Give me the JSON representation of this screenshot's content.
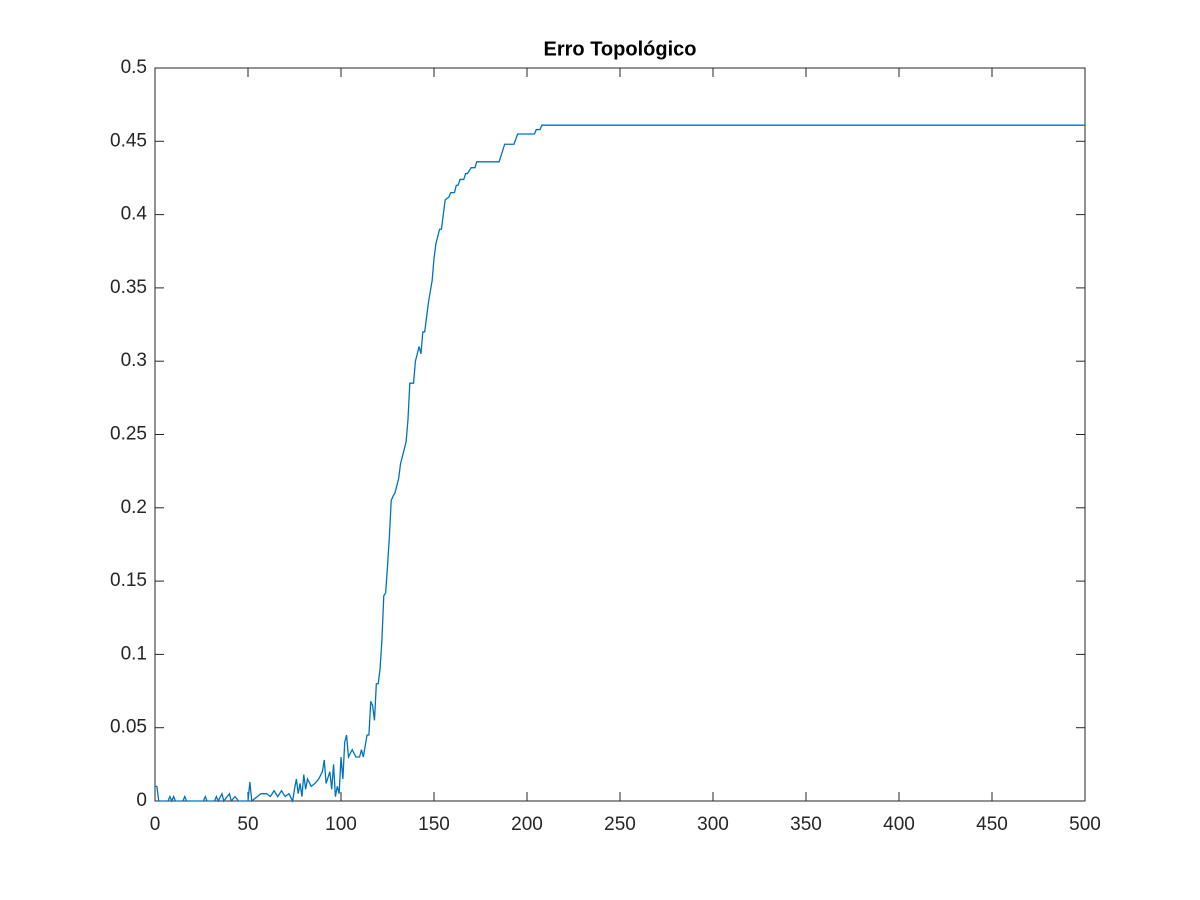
{
  "chart_data": {
    "type": "line",
    "title": "Erro Topológico",
    "x": [
      0,
      1,
      2,
      7,
      8,
      9,
      10,
      11,
      15,
      16,
      17,
      26,
      27,
      28,
      32,
      33,
      34,
      36,
      37,
      40,
      41,
      43,
      45,
      50,
      51,
      52,
      55,
      57,
      60,
      62,
      64,
      66,
      68,
      70,
      72,
      74,
      75,
      76,
      77,
      78,
      79,
      80,
      81,
      82,
      84,
      86,
      88,
      90,
      91,
      92,
      94,
      95,
      96,
      97,
      98,
      99,
      100,
      101,
      102,
      103,
      104,
      106,
      108,
      110,
      111,
      112,
      114,
      115,
      116,
      117,
      118,
      119,
      120,
      121,
      122,
      123,
      124,
      125,
      126,
      127,
      128,
      129,
      131,
      132,
      134,
      135,
      136,
      137,
      139,
      140,
      141,
      142,
      143,
      144,
      145,
      147,
      149,
      150,
      151,
      152,
      153,
      154,
      155,
      156,
      158,
      159,
      161,
      162,
      163,
      164,
      166,
      167,
      168,
      170,
      172,
      173,
      185,
      188,
      193,
      195,
      204,
      205,
      207,
      208,
      500
    ],
    "series": [
      {
        "color": "#0072BD",
        "values": [
          0.01,
          0.01,
          0,
          0,
          0.003,
          0,
          0.003,
          0,
          0,
          0.003,
          0,
          0,
          0.003,
          0,
          0,
          0.003,
          0,
          0.005,
          0,
          0.005,
          0,
          0.003,
          0,
          0,
          0.013,
          0,
          0.003,
          0.005,
          0.005,
          0.003,
          0.007,
          0.003,
          0.007,
          0.003,
          0.005,
          0,
          0.008,
          0.015,
          0.005,
          0.012,
          0.003,
          0.018,
          0.008,
          0.015,
          0.01,
          0.012,
          0.015,
          0.02,
          0.028,
          0.012,
          0.02,
          0.008,
          0.025,
          0.003,
          0.01,
          0.005,
          0.03,
          0.015,
          0.04,
          0.045,
          0.03,
          0.035,
          0.03,
          0.03,
          0.035,
          0.03,
          0.045,
          0.045,
          0.068,
          0.065,
          0.055,
          0.08,
          0.08,
          0.09,
          0.11,
          0.14,
          0.142,
          0.16,
          0.18,
          0.205,
          0.208,
          0.21,
          0.22,
          0.23,
          0.24,
          0.245,
          0.26,
          0.285,
          0.285,
          0.3,
          0.305,
          0.31,
          0.305,
          0.32,
          0.32,
          0.34,
          0.355,
          0.37,
          0.38,
          0.385,
          0.39,
          0.39,
          0.4,
          0.41,
          0.412,
          0.415,
          0.415,
          0.42,
          0.42,
          0.424,
          0.424,
          0.428,
          0.428,
          0.432,
          0.432,
          0.436,
          0.436,
          0.448,
          0.448,
          0.455,
          0.455,
          0.458,
          0.458,
          0.461,
          0.461
        ]
      }
    ],
    "xlim": [
      0,
      500
    ],
    "xticks": [
      0,
      50,
      100,
      150,
      200,
      250,
      300,
      350,
      400,
      450,
      500
    ],
    "ylim": [
      0,
      0.5
    ],
    "yticks": [
      0,
      0.05,
      0.1,
      0.15,
      0.2,
      0.25,
      0.3,
      0.35,
      0.4,
      0.45,
      0.5
    ],
    "grid": false
  }
}
